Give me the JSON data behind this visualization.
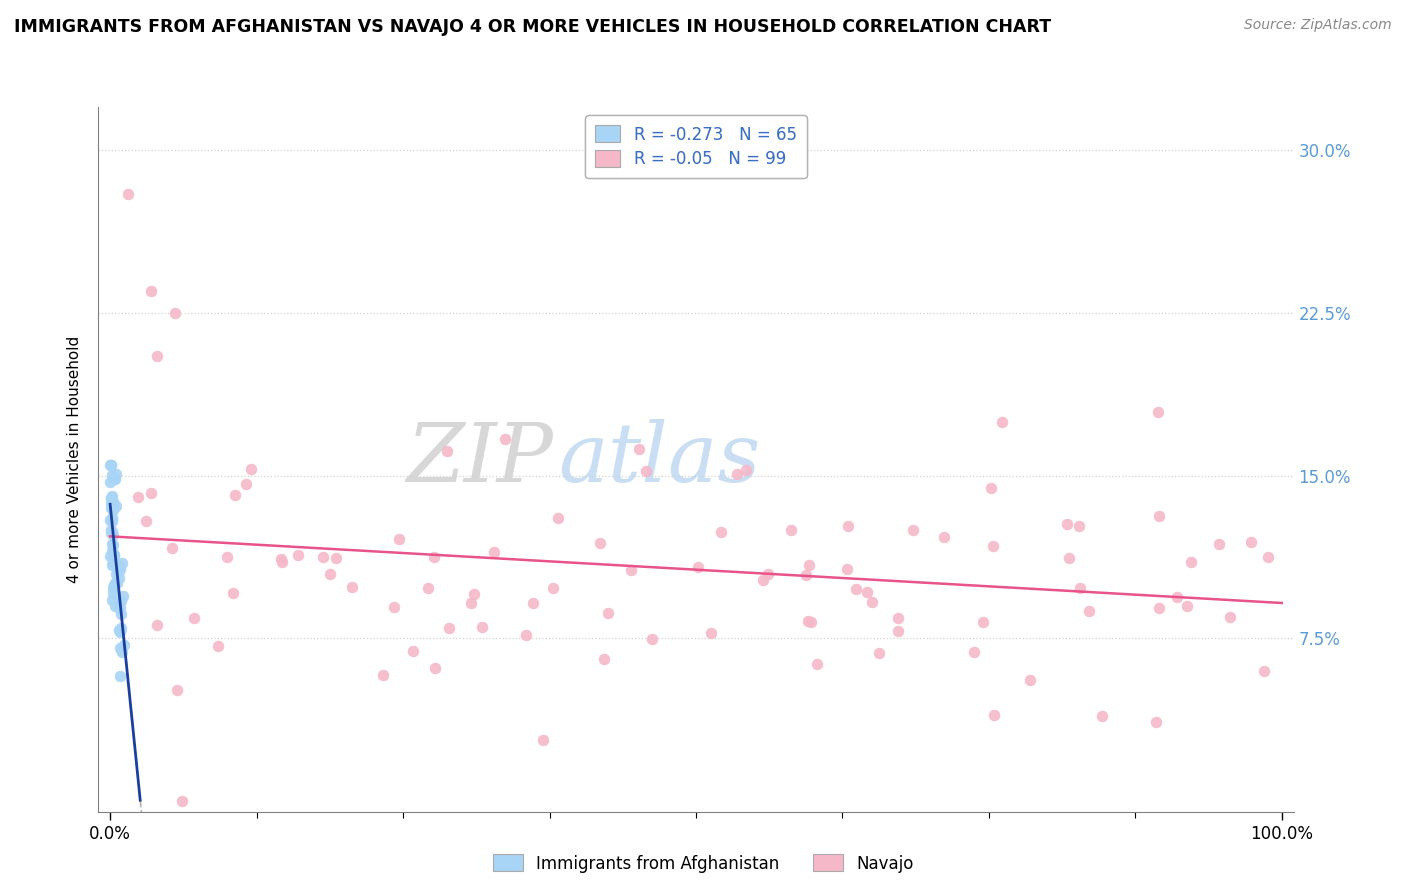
{
  "title": "IMMIGRANTS FROM AFGHANISTAN VS NAVAJO 4 OR MORE VEHICLES IN HOUSEHOLD CORRELATION CHART",
  "source": "Source: ZipAtlas.com",
  "ylabel": "4 or more Vehicles in Household",
  "legend1_label": "Immigrants from Afghanistan",
  "legend2_label": "Navajo",
  "R1": -0.273,
  "N1": 65,
  "R2": -0.05,
  "N2": 99,
  "blue_color": "#a8d4f5",
  "pink_color": "#f5b8c8",
  "blue_line_color": "#1a3f9e",
  "pink_line_color": "#e8538a",
  "watermark_zip": "ZIP",
  "watermark_atlas": "atlas",
  "ytick_vals": [
    7.5,
    15.0,
    22.5,
    30.0
  ],
  "ytick_labels": [
    "7.5%",
    "15.0%",
    "22.5%",
    "30.0%"
  ],
  "xlim": [
    0,
    100
  ],
  "ylim": [
    0,
    32
  ],
  "ymin_data": 0,
  "ymax_data": 30,
  "note": "x-axis in percentage 0-100, y-axis in percentage 0-30. Afghanistan clustered near x=0, navajo spread 0-100"
}
